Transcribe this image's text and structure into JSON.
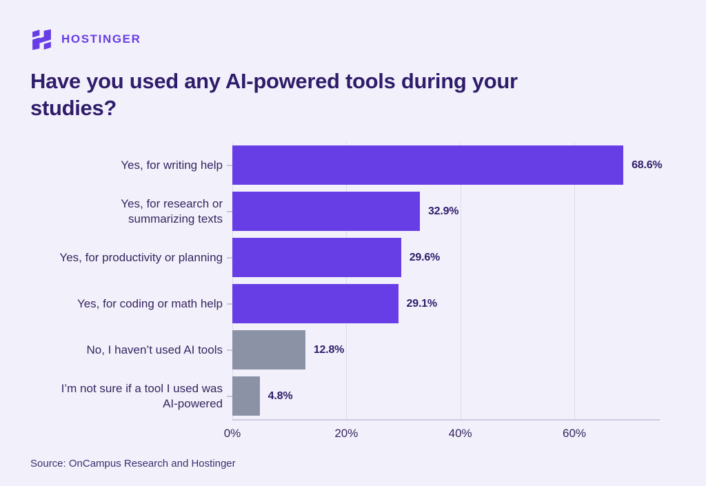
{
  "header": {
    "brand": "HOSTINGER",
    "title": "Have you used any AI-powered tools during your\nstudies?"
  },
  "chart_data": {
    "type": "bar",
    "orientation": "horizontal",
    "title": "Have you used any AI-powered tools during your studies?",
    "categories": [
      "Yes, for writing help",
      "Yes, for research or\nsummarizing texts",
      "Yes, for productivity or planning",
      "Yes, for coding or math help",
      "No, I haven’t used AI tools",
      "I’m not sure if a tool I used was\nAI-powered"
    ],
    "values": [
      68.6,
      32.9,
      29.6,
      29.1,
      12.8,
      4.8
    ],
    "value_labels": [
      "68.6%",
      "32.9%",
      "29.6%",
      "29.1%",
      "12.8%",
      "4.8%"
    ],
    "bar_colors": [
      "#673DE6",
      "#673DE6",
      "#673DE6",
      "#673DE6",
      "#8C92A6",
      "#8C92A6"
    ],
    "xlim": [
      0,
      75
    ],
    "xticks": [
      0,
      20,
      40,
      60
    ],
    "xtick_labels": [
      "0%",
      "20%",
      "40%",
      "60%"
    ],
    "grid": true,
    "legend": null,
    "xlabel": "",
    "ylabel": ""
  },
  "footer": {
    "source": "Source: OnCampus Research and Hostinger"
  },
  "colors": {
    "background": "#F2F1FB",
    "accent": "#673DE6",
    "muted_bar": "#8C92A6",
    "title_text": "#2F1C6A",
    "label_text": "#36245F",
    "gridline": "#DBDAEC",
    "axis_line": "#CBCAE2"
  }
}
